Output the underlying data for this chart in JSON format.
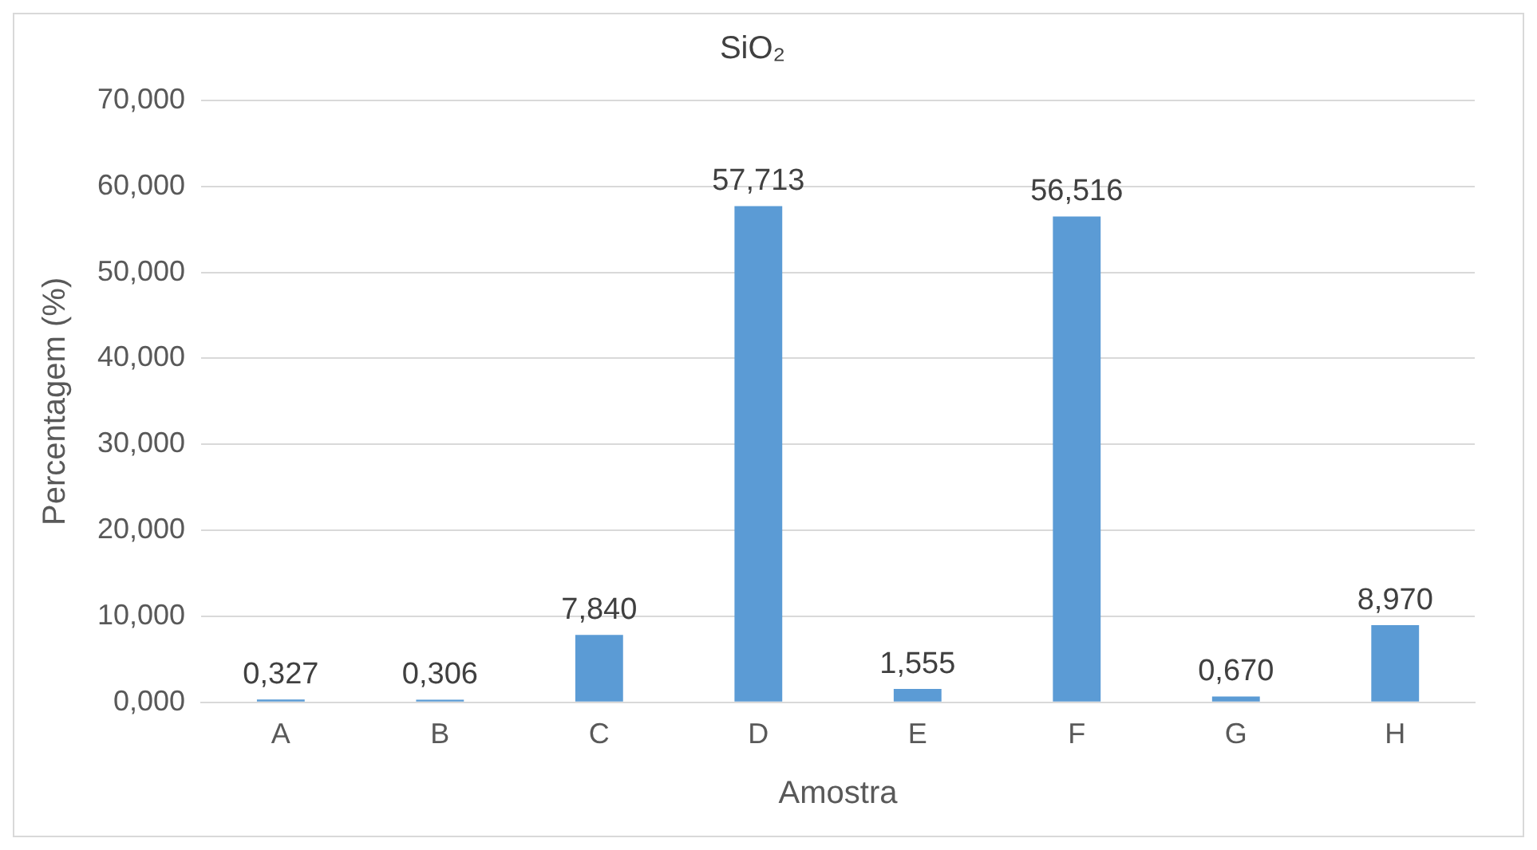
{
  "chart_data": {
    "type": "bar",
    "title": "SiO₂",
    "xlabel": "Amostra",
    "ylabel": "Percentagem (%)",
    "categories": [
      "A",
      "B",
      "C",
      "D",
      "E",
      "F",
      "G",
      "H"
    ],
    "values": [
      0.327,
      0.306,
      7.84,
      57.713,
      1.555,
      56.516,
      0.67,
      8.97
    ],
    "value_labels": [
      "0,327",
      "0,306",
      "7,840",
      "57,713",
      "1,555",
      "56,516",
      "0,670",
      "8,970"
    ],
    "color": "#5b9bd5",
    "ylim": [
      0,
      70
    ],
    "yticks": [
      {
        "value": 0,
        "label": "0,000"
      },
      {
        "value": 10,
        "label": "10,000"
      },
      {
        "value": 20,
        "label": "20,000"
      },
      {
        "value": 30,
        "label": "30,000"
      },
      {
        "value": 40,
        "label": "40,000"
      },
      {
        "value": 50,
        "label": "50,000"
      },
      {
        "value": 60,
        "label": "60,000"
      },
      {
        "value": 70,
        "label": "70,000"
      }
    ],
    "grid": "y",
    "legend": false
  }
}
